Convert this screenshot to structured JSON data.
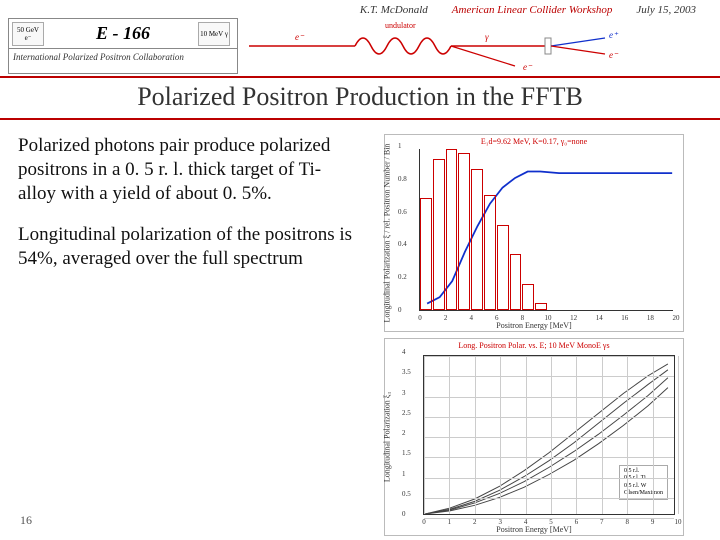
{
  "header": {
    "author": "K.T. McDonald",
    "workshop": "American Linear Collider Workshop",
    "date": "July 15, 2003"
  },
  "logo": {
    "badge_left": "50 GeV e⁻",
    "badge_right": "10 MeV γ",
    "title": "E - 166",
    "subtitle": "International Polarized Positron Collaboration"
  },
  "slide_title": "Polarized Positron Production in the FFTB",
  "body": {
    "para1": "Polarized photons pair produce polarized positrons in a 0. 5 r. l. thick target of Ti-alloy with a yield of about 0. 5%.",
    "para2": "Longitudinal polarization of the positrons is 54%, averaged over the full spectrum"
  },
  "chart1": {
    "type": "bar+line",
    "title": "E₁d=9.62 MeV, K=0.17, γ₀=none",
    "ylabel": "Longitudinal Polarization ξ / rel. Positron Number / Bin",
    "xlabel": "Positron Energy [MeV]",
    "xlim": [
      0,
      20
    ],
    "x_ticks": [
      0,
      2,
      4,
      6,
      8,
      10,
      12,
      14,
      16,
      18,
      20
    ],
    "ylim": [
      0,
      1.0
    ],
    "y_ticks": [
      0,
      0.2,
      0.4,
      0.6,
      0.8,
      1.0
    ],
    "bar_color": "#cc0000",
    "bars": [
      {
        "x": 1,
        "h": 0.68
      },
      {
        "x": 2,
        "h": 0.92
      },
      {
        "x": 3,
        "h": 0.98
      },
      {
        "x": 4,
        "h": 0.96
      },
      {
        "x": 5,
        "h": 0.86
      },
      {
        "x": 6,
        "h": 0.7
      },
      {
        "x": 7,
        "h": 0.52
      },
      {
        "x": 8,
        "h": 0.34
      },
      {
        "x": 9,
        "h": 0.16
      },
      {
        "x": 10,
        "h": 0.04
      }
    ],
    "line_color": "#1030cc",
    "line": [
      {
        "x": 0.5,
        "y": 0.04
      },
      {
        "x": 1.5,
        "y": 0.08
      },
      {
        "x": 2.5,
        "y": 0.18
      },
      {
        "x": 3.5,
        "y": 0.36
      },
      {
        "x": 4.5,
        "y": 0.52
      },
      {
        "x": 5.5,
        "y": 0.66
      },
      {
        "x": 6.5,
        "y": 0.76
      },
      {
        "x": 7.5,
        "y": 0.82
      },
      {
        "x": 8.5,
        "y": 0.86
      },
      {
        "x": 9.5,
        "y": 0.86
      },
      {
        "x": 11,
        "y": 0.85
      },
      {
        "x": 13,
        "y": 0.85
      },
      {
        "x": 16,
        "y": 0.85
      },
      {
        "x": 20,
        "y": 0.85
      }
    ]
  },
  "chart2": {
    "type": "line",
    "title": "Long. Positron Polar. vs. E; 10 MeV MonoE γs",
    "ylabel": "Longitudinal Polarization ξ₃",
    "xlabel": "Positron Energy [MeV]",
    "xlim": [
      0,
      10
    ],
    "x_ticks": [
      0,
      1,
      2,
      3,
      4,
      5,
      6,
      7,
      8,
      9,
      10
    ],
    "ylim": [
      0,
      4.0
    ],
    "y_ticks": [
      0,
      0.5,
      1.0,
      1.5,
      2.0,
      2.5,
      3.0,
      3.5,
      4.0
    ],
    "grid_color": "#cccccc",
    "line_color": "#444444",
    "series": [
      {
        "name": "0.5 r.l.",
        "pts": [
          [
            0,
            0
          ],
          [
            1,
            0.15
          ],
          [
            2,
            0.38
          ],
          [
            3,
            0.7
          ],
          [
            4,
            1.1
          ],
          [
            5,
            1.55
          ],
          [
            6,
            2.05
          ],
          [
            7,
            2.55
          ],
          [
            8,
            3.05
          ],
          [
            9,
            3.5
          ],
          [
            9.8,
            3.8
          ]
        ]
      },
      {
        "name": "0.5 r.l. Ti",
        "pts": [
          [
            0,
            0
          ],
          [
            1,
            0.12
          ],
          [
            2,
            0.32
          ],
          [
            3,
            0.6
          ],
          [
            4,
            0.95
          ],
          [
            5,
            1.35
          ],
          [
            6,
            1.8
          ],
          [
            7,
            2.3
          ],
          [
            8,
            2.8
          ],
          [
            9,
            3.28
          ],
          [
            9.8,
            3.65
          ]
        ]
      },
      {
        "name": "0.5 r.l. W",
        "pts": [
          [
            0,
            0
          ],
          [
            1,
            0.1
          ],
          [
            2,
            0.28
          ],
          [
            3,
            0.52
          ],
          [
            4,
            0.82
          ],
          [
            5,
            1.18
          ],
          [
            6,
            1.58
          ],
          [
            7,
            2.02
          ],
          [
            8,
            2.5
          ],
          [
            9,
            3.0
          ],
          [
            9.8,
            3.45
          ]
        ]
      },
      {
        "name": "Olsen/Maximon",
        "pts": [
          [
            0,
            0
          ],
          [
            1,
            0.08
          ],
          [
            2,
            0.22
          ],
          [
            3,
            0.42
          ],
          [
            4,
            0.68
          ],
          [
            5,
            1.0
          ],
          [
            6,
            1.36
          ],
          [
            7,
            1.78
          ],
          [
            8,
            2.24
          ],
          [
            9,
            2.74
          ],
          [
            9.8,
            3.2
          ]
        ]
      }
    ],
    "legend": [
      "0.5 r.l.",
      "0.5 r.l. Ti",
      "0.5 r.l. W",
      "Olsen/Maximon"
    ]
  },
  "page_number": "16",
  "colors": {
    "rule": "#b00000",
    "accent_red": "#cc0000",
    "accent_blue": "#1030cc",
    "text": "#111111",
    "background": "#ffffff"
  }
}
